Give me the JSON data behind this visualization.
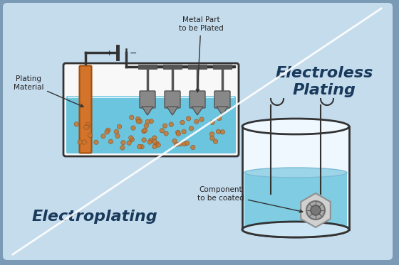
{
  "bg_outer": "#7a9ab5",
  "bg_inner": "#c5dced",
  "electroplating_label": "Electroplating",
  "electroless_label": "Electroless\nPlating",
  "plating_material_label": "Plating\nMaterial",
  "metal_part_label": "Metal Part\nto be Plated",
  "component_label": "Component\nto be coated",
  "tank_color": "#6bc5de",
  "tank_border": "#333333",
  "electrode_orange": "#d4732a",
  "electrode_orange_dark": "#a05010",
  "dot_color": "#c87832",
  "wire_color": "#333333",
  "label_color": "#222222",
  "section_color": "#1a3a5c",
  "section_fontsize": 16,
  "label_fontsize": 7.5,
  "diag_line_color": "#ffffff"
}
